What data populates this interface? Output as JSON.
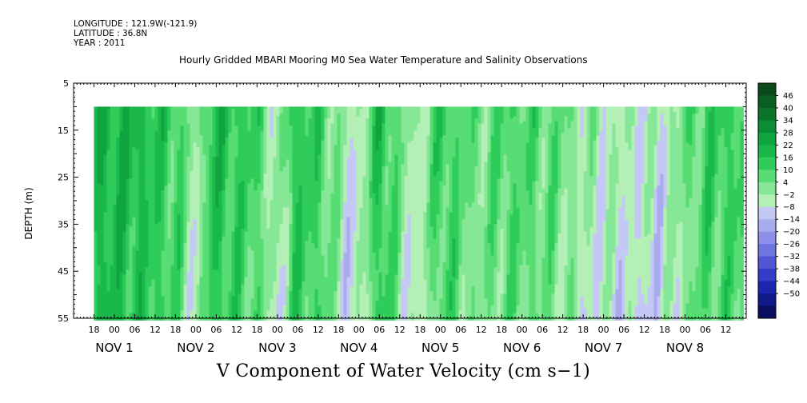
{
  "header": {
    "longitude": "LONGITUDE : 121.9W(-121.9)",
    "latitude": "LATITUDE : 36.8N",
    "year": "YEAR : 2011"
  },
  "chart_data": {
    "type": "heatmap",
    "title": "Hourly Gridded MBARI Mooring M0 Sea Water Temperature and Salinity Observations",
    "xlabel": "V Component of Water Velocity (cm s−1)",
    "ylabel": "DEPTH (m)",
    "y_ticks": [
      "5",
      "15",
      "25",
      "35",
      "45",
      "55"
    ],
    "ylim": [
      5,
      55
    ],
    "y_inverted": true,
    "data_depth_range": [
      10,
      55
    ],
    "x_hour_labels": [
      "18",
      "00",
      "06",
      "12",
      "18",
      "00",
      "06",
      "12",
      "18",
      "00",
      "06",
      "12",
      "18",
      "00",
      "06",
      "12",
      "18",
      "00",
      "06",
      "12",
      "18",
      "00",
      "06",
      "12",
      "18",
      "00",
      "06",
      "12",
      "18",
      "00",
      "06",
      "12"
    ],
    "x_day_labels": [
      "NOV  1",
      "NOV  2",
      "NOV  3",
      "NOV  4",
      "NOV  5",
      "NOV  6",
      "NOV  7",
      "NOV  8"
    ],
    "time_start": "2011-10-31T12:00",
    "time_end": "2011-11-08T18:00",
    "data_time_start": "2011-10-31T18:00",
    "data_time_end": "2011-11-08T17:00",
    "grid": false,
    "colorbar": {
      "position": "right",
      "labels": [
        "46",
        "40",
        "34",
        "28",
        "22",
        "16",
        "10",
        "4",
        "−2",
        "−8",
        "−14",
        "−20",
        "−26",
        "−32",
        "−38",
        "−44",
        "−50"
      ],
      "colors": [
        "#0a4a1a",
        "#0a5e22",
        "#0b742b",
        "#0c8c35",
        "#10a43f",
        "#1ab84a",
        "#2fcc5a",
        "#58dc74",
        "#86e896",
        "#b4f0b6",
        "#c4c8f4",
        "#a8acee",
        "#8c90e8",
        "#6e74e0",
        "#5056d6",
        "#343cc8",
        "#1e26b0",
        "#101a8a",
        "#0a0e5e"
      ]
    },
    "series": [
      {
        "time": "2011-11-01T04:00",
        "v_mean": 20
      },
      {
        "time": "2011-11-01T18:00",
        "v_mean": 12
      },
      {
        "time": "2011-11-02T00:00",
        "v_mean": -4
      },
      {
        "time": "2011-11-02T04:00",
        "v_mean": 18
      },
      {
        "time": "2011-11-02T18:00",
        "v_mean": 10
      },
      {
        "time": "2011-11-03T00:00",
        "v_mean": -6
      },
      {
        "time": "2011-11-03T04:00",
        "v_mean": 16
      },
      {
        "time": "2011-11-03T12:00",
        "v_mean": 12
      },
      {
        "time": "2011-11-03T22:00",
        "v_mean": -8
      },
      {
        "time": "2011-11-04T06:00",
        "v_mean": 18
      },
      {
        "time": "2011-11-04T16:00",
        "v_mean": -6
      },
      {
        "time": "2011-11-05T00:00",
        "v_mean": 14
      },
      {
        "time": "2011-11-05T10:00",
        "v_mean": 4
      },
      {
        "time": "2011-11-05T20:00",
        "v_mean": 10
      },
      {
        "time": "2011-11-06T10:00",
        "v_mean": 6
      },
      {
        "time": "2011-11-06T18:00",
        "v_mean": -2
      },
      {
        "time": "2011-11-07T06:00",
        "v_mean": -4
      },
      {
        "time": "2011-11-07T16:00",
        "v_mean": -6
      },
      {
        "time": "2011-11-08T06:00",
        "v_mean": 12
      }
    ]
  }
}
